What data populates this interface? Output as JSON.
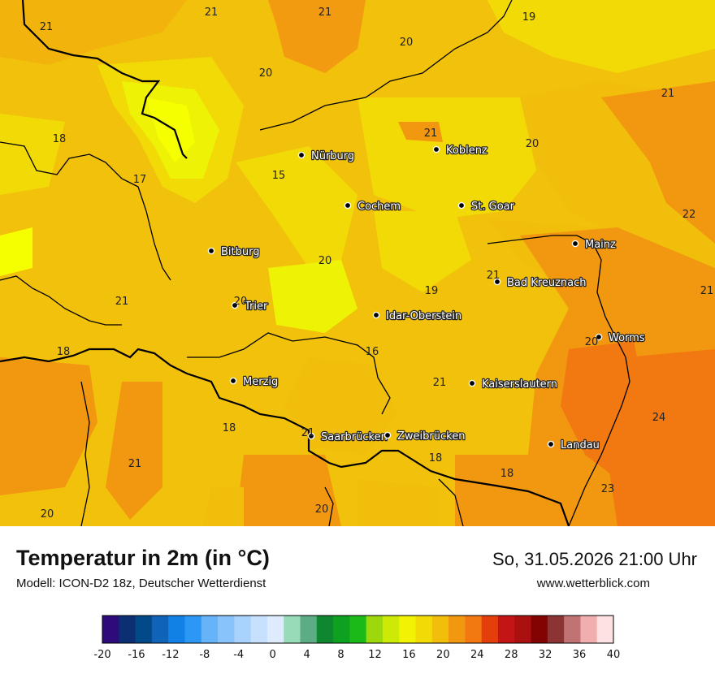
{
  "map": {
    "cities": [
      {
        "name": "Nürburg"
      },
      {
        "name": "Koblenz"
      },
      {
        "name": "Cochem"
      },
      {
        "name": "St. Goar"
      },
      {
        "name": "Bitburg"
      },
      {
        "name": "Mainz"
      },
      {
        "name": "Bad Kreuznach"
      },
      {
        "name": "Trier"
      },
      {
        "name": "Idar-Oberstein"
      },
      {
        "name": "Worms"
      },
      {
        "name": "Merzig"
      },
      {
        "name": "Kaiserslautern"
      },
      {
        "name": "Saarbrücken"
      },
      {
        "name": "Zweibrücken"
      },
      {
        "name": "Landau"
      }
    ],
    "temperatures": [
      "21",
      "21",
      "21",
      "19",
      "20",
      "20",
      "21",
      "18",
      "17",
      "15",
      "21",
      "20",
      "22",
      "20",
      "21",
      "19",
      "21",
      "20",
      "21",
      "18",
      "16",
      "21",
      "20",
      "24",
      "18",
      "21",
      "18",
      "18",
      "21",
      "23",
      "20",
      "20"
    ]
  },
  "footer": {
    "title": "Temperatur in 2m (in °C)",
    "model": "Modell: ICON-D2 18z, Deutscher Wetterdienst",
    "datetime": "So, 31.05.2026 21:00 Uhr",
    "website": "www.wetterblick.com"
  },
  "colorscale": {
    "colors": [
      "#2e0a7a",
      "#0b2f72",
      "#02498a",
      "#0f63b8",
      "#1181e6",
      "#2c97f5",
      "#67b3fa",
      "#89c3fb",
      "#a9d2fc",
      "#c7e0fd",
      "#ddebfd",
      "#97dbb8",
      "#5cac86",
      "#0f8630",
      "#0ea021",
      "#1cba18",
      "#9dd80c",
      "#cde906",
      "#f1f204",
      "#f2da07",
      "#f1be0b",
      "#f29710",
      "#f27812",
      "#e43e0c",
      "#c31515",
      "#aa1010",
      "#830202",
      "#8c3433",
      "#c17273",
      "#f0aeaf",
      "#fde2e3"
    ],
    "ticks": [
      "-20",
      "-16",
      "-12",
      "-8",
      "-4",
      "0",
      "4",
      "8",
      "12",
      "16",
      "20",
      "24",
      "28",
      "32",
      "36",
      "40"
    ]
  }
}
